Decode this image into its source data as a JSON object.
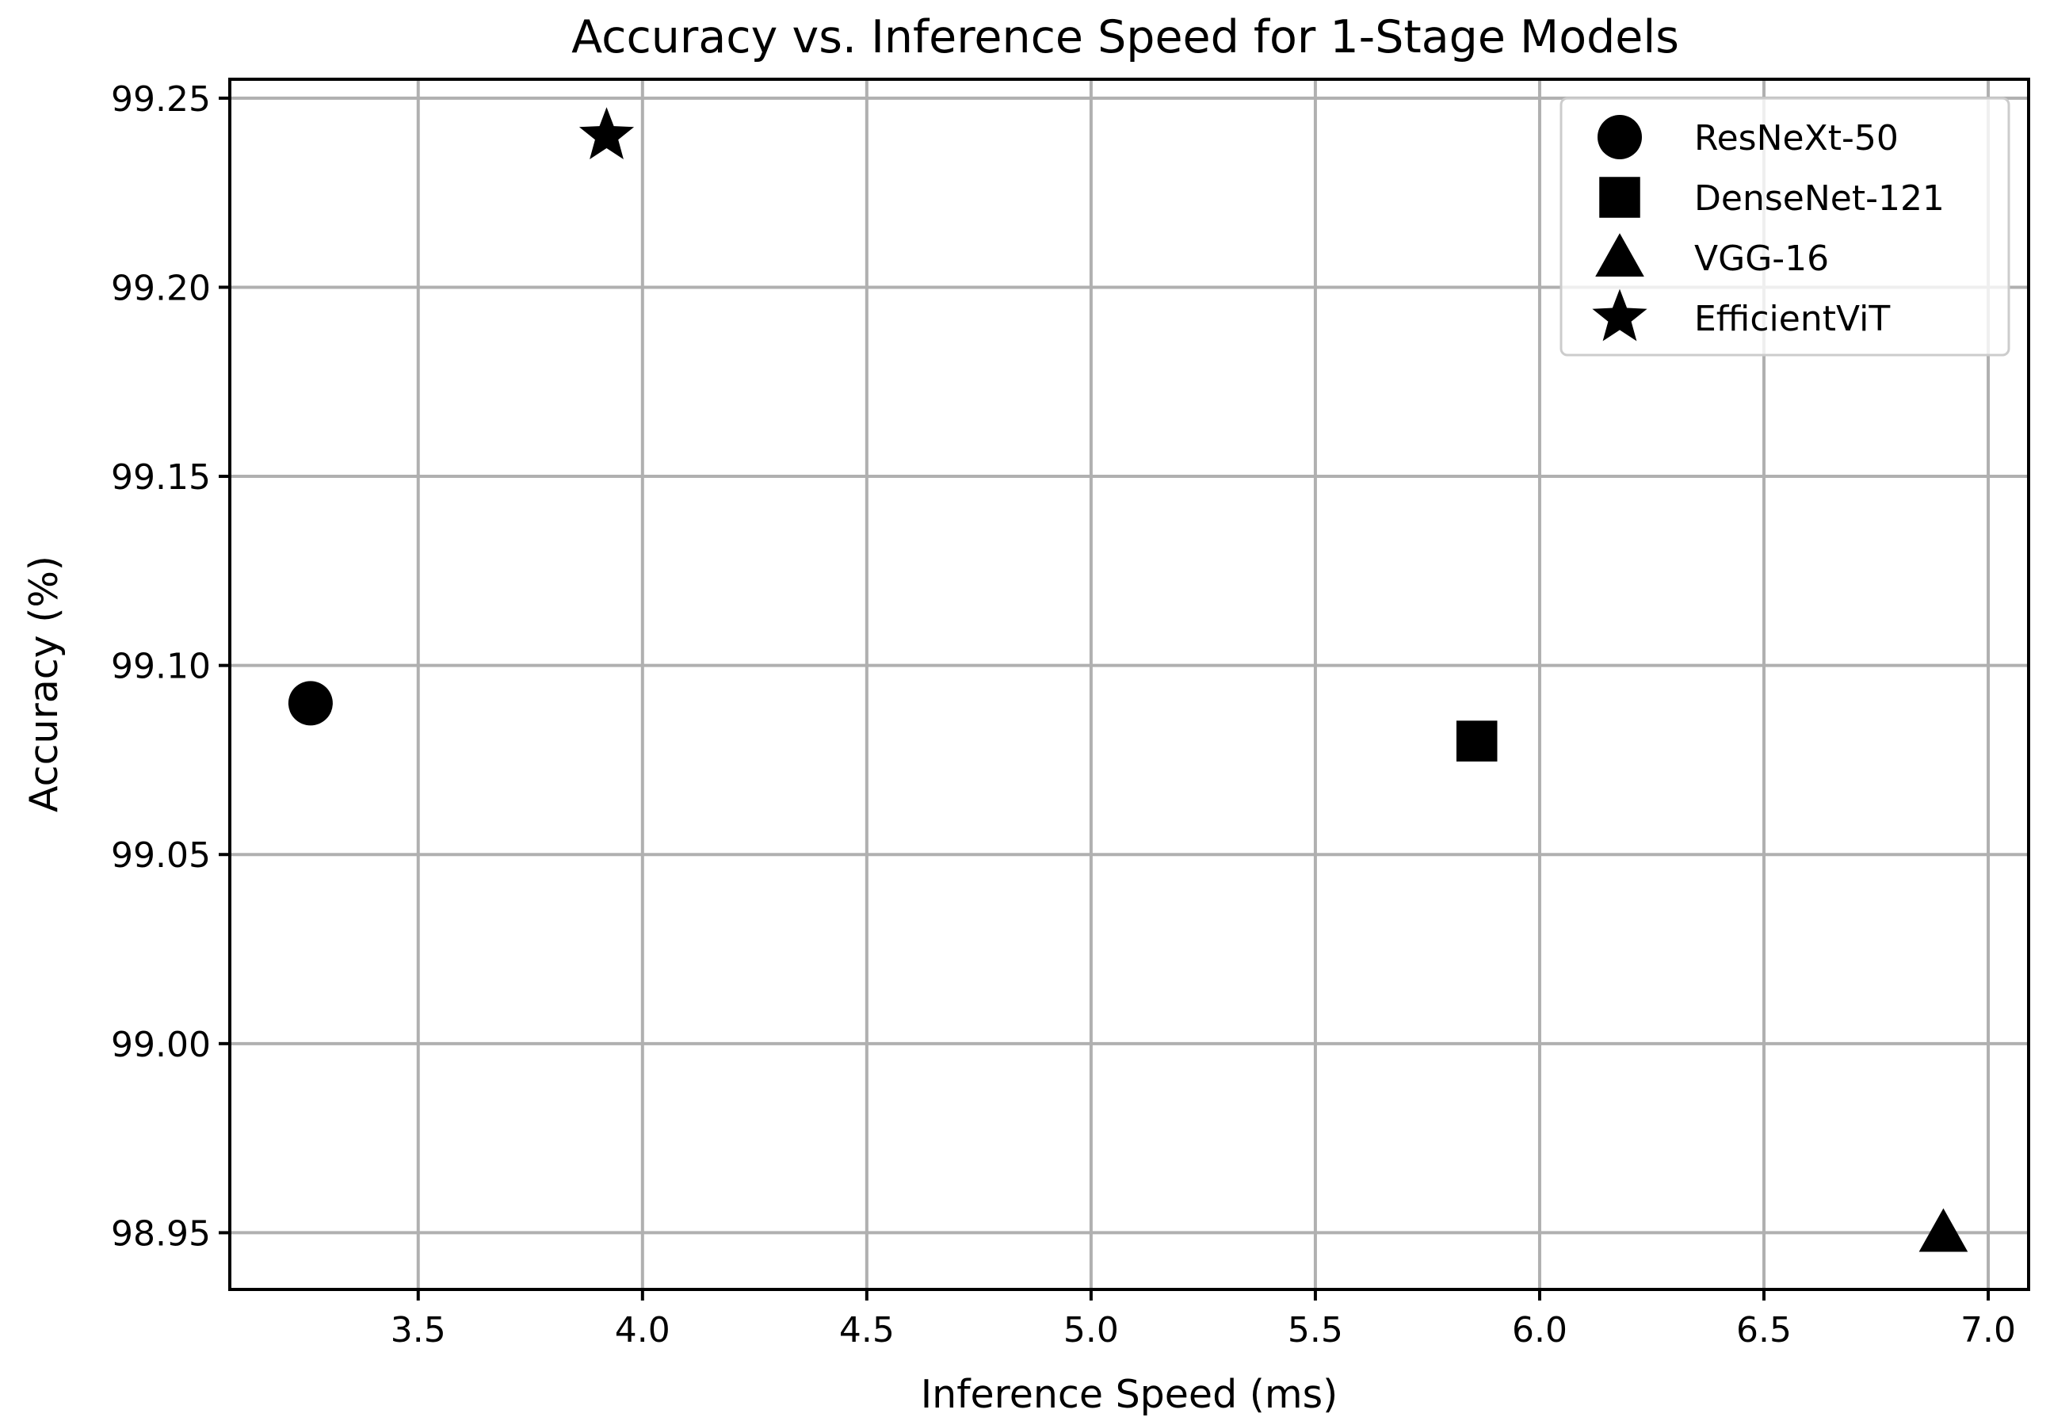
{
  "chart_data": {
    "type": "scatter",
    "title": "Accuracy vs. Inference Speed for 1-Stage Models",
    "xlabel": "Inference Speed (ms)",
    "ylabel": "Accuracy (%)",
    "xlim": [
      3.08,
      7.09
    ],
    "ylim": [
      98.935,
      99.255
    ],
    "xticks": [
      3.5,
      4.0,
      4.5,
      5.0,
      5.5,
      6.0,
      6.5,
      7.0
    ],
    "xtick_labels": [
      "3.5",
      "4.0",
      "4.5",
      "5.0",
      "5.5",
      "6.0",
      "6.5",
      "7.0"
    ],
    "yticks": [
      98.95,
      99.0,
      99.05,
      99.1,
      99.15,
      99.2,
      99.25
    ],
    "ytick_labels": [
      "98.95",
      "99.00",
      "99.05",
      "99.10",
      "99.15",
      "99.20",
      "99.25"
    ],
    "grid": true,
    "legend_position": "upper right",
    "marker_color": "#000000",
    "series": [
      {
        "name": "ResNeXt-50",
        "marker": "circle",
        "x": 3.26,
        "y": 99.09
      },
      {
        "name": "DenseNet-121",
        "marker": "square",
        "x": 5.86,
        "y": 99.08
      },
      {
        "name": "VGG-16",
        "marker": "triangle",
        "x": 6.9,
        "y": 98.95
      },
      {
        "name": "EfficientViT",
        "marker": "star",
        "x": 3.92,
        "y": 99.24
      }
    ]
  }
}
